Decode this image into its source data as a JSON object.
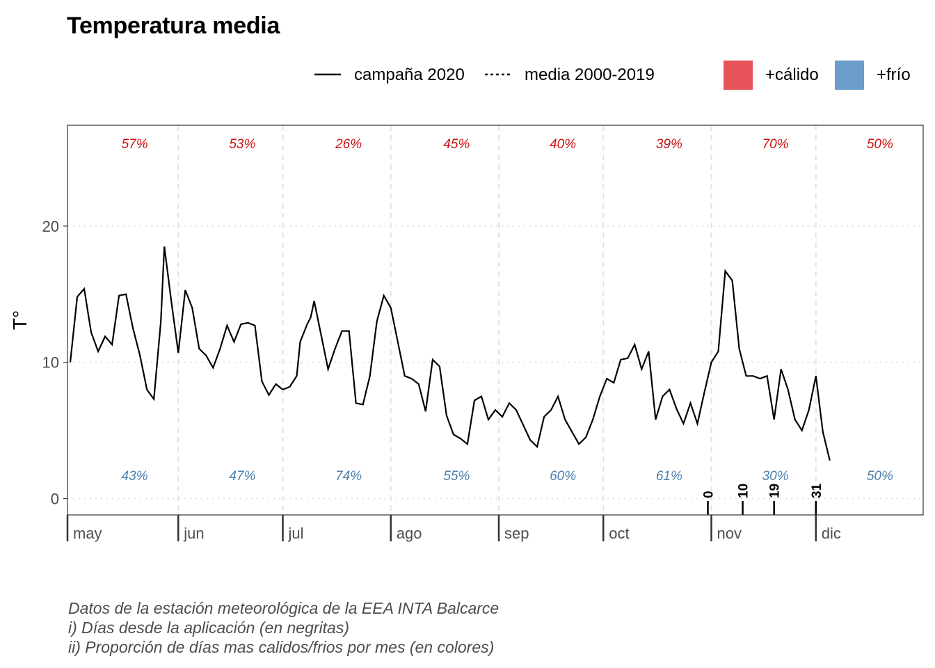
{
  "title": "Temperatura media",
  "legend": {
    "line_2020": "campaña 2020",
    "line_mean": "media 2000-2019",
    "warm": "+cálido",
    "cold": "+frío"
  },
  "colors": {
    "warm": "#e8545a",
    "warm_fill": "#ef8e8f",
    "cold": "#6b9ecb",
    "cold_fill": "#9bbcdd",
    "warm_text": "#cc1111",
    "cold_text": "#4a80b0"
  },
  "caption": [
    "Datos de la estación meteorológica de la EEA INTA Balcarce",
    "i) Días desde la aplicación (en negritas)",
    "ii) Proporción de días mas calidos/frios por mes (en colores)"
  ],
  "chart_data": {
    "type": "area",
    "ylabel": "T°",
    "xlabel": "",
    "ylim": [
      -1.2,
      27.4
    ],
    "yticks": [
      0,
      10,
      20
    ],
    "grid": true,
    "legend_position": "top-right",
    "months": [
      "may",
      "jun",
      "jul",
      "ago",
      "sep",
      "oct",
      "nov",
      "dic"
    ],
    "warm_pct": [
      "57%",
      "53%",
      "26%",
      "45%",
      "40%",
      "39%",
      "70%",
      "50%"
    ],
    "cold_pct": [
      "43%",
      "47%",
      "74%",
      "55%",
      "60%",
      "61%",
      "30%",
      "50%"
    ],
    "application_days": [
      "0",
      "10",
      "19",
      "31"
    ],
    "application_dates": [
      "2020-10-31",
      "2020-11-10",
      "2020-11-19",
      "2020-12-01"
    ],
    "x_start": "2020-05-01",
    "x_end": "2020-12-31",
    "series_2020": [
      [
        "2020-05-01",
        10.0
      ],
      [
        "2020-05-03",
        14.8
      ],
      [
        "2020-05-05",
        15.4
      ],
      [
        "2020-05-07",
        12.2
      ],
      [
        "2020-05-09",
        10.8
      ],
      [
        "2020-05-11",
        11.9
      ],
      [
        "2020-05-13",
        11.3
      ],
      [
        "2020-05-15",
        14.9
      ],
      [
        "2020-05-17",
        15.0
      ],
      [
        "2020-05-19",
        12.5
      ],
      [
        "2020-05-21",
        10.5
      ],
      [
        "2020-05-23",
        8.0
      ],
      [
        "2020-05-25",
        7.3
      ],
      [
        "2020-05-27",
        13.0
      ],
      [
        "2020-05-28",
        18.5
      ],
      [
        "2020-05-30",
        14.5
      ],
      [
        "2020-06-01",
        10.7
      ],
      [
        "2020-06-03",
        15.3
      ],
      [
        "2020-06-05",
        14.0
      ],
      [
        "2020-06-07",
        11.0
      ],
      [
        "2020-06-09",
        10.5
      ],
      [
        "2020-06-11",
        9.6
      ],
      [
        "2020-06-13",
        11.0
      ],
      [
        "2020-06-15",
        12.7
      ],
      [
        "2020-06-17",
        11.5
      ],
      [
        "2020-06-19",
        12.8
      ],
      [
        "2020-06-21",
        12.9
      ],
      [
        "2020-06-23",
        12.7
      ],
      [
        "2020-06-25",
        8.6
      ],
      [
        "2020-06-27",
        7.6
      ],
      [
        "2020-06-29",
        8.4
      ],
      [
        "2020-07-01",
        8.0
      ],
      [
        "2020-07-03",
        8.2
      ],
      [
        "2020-07-05",
        9.0
      ],
      [
        "2020-07-06",
        11.5
      ],
      [
        "2020-07-08",
        12.8
      ],
      [
        "2020-07-09",
        13.3
      ],
      [
        "2020-07-10",
        14.5
      ],
      [
        "2020-07-12",
        12.0
      ],
      [
        "2020-07-14",
        9.5
      ],
      [
        "2020-07-16",
        11.0
      ],
      [
        "2020-07-18",
        12.3
      ],
      [
        "2020-07-20",
        12.3
      ],
      [
        "2020-07-22",
        7.0
      ],
      [
        "2020-07-24",
        6.9
      ],
      [
        "2020-07-26",
        9.0
      ],
      [
        "2020-07-28",
        13.0
      ],
      [
        "2020-07-30",
        14.9
      ],
      [
        "2020-08-01",
        14.0
      ],
      [
        "2020-08-03",
        11.5
      ],
      [
        "2020-08-05",
        9.0
      ],
      [
        "2020-08-07",
        8.8
      ],
      [
        "2020-08-09",
        8.4
      ],
      [
        "2020-08-11",
        6.4
      ],
      [
        "2020-08-13",
        10.2
      ],
      [
        "2020-08-15",
        9.7
      ],
      [
        "2020-08-17",
        6.1
      ],
      [
        "2020-08-19",
        4.7
      ],
      [
        "2020-08-21",
        4.4
      ],
      [
        "2020-08-23",
        4.0
      ],
      [
        "2020-08-25",
        7.2
      ],
      [
        "2020-08-27",
        7.5
      ],
      [
        "2020-08-29",
        5.8
      ],
      [
        "2020-08-31",
        6.5
      ],
      [
        "2020-09-02",
        6.0
      ],
      [
        "2020-09-04",
        7.0
      ],
      [
        "2020-09-06",
        6.5
      ],
      [
        "2020-09-08",
        5.4
      ],
      [
        "2020-09-10",
        4.3
      ],
      [
        "2020-09-12",
        3.8
      ],
      [
        "2020-09-14",
        6.0
      ],
      [
        "2020-09-16",
        6.5
      ],
      [
        "2020-09-18",
        7.5
      ],
      [
        "2020-09-20",
        5.8
      ],
      [
        "2020-09-22",
        4.9
      ],
      [
        "2020-09-24",
        4.0
      ],
      [
        "2020-09-26",
        4.5
      ],
      [
        "2020-09-28",
        5.8
      ],
      [
        "2020-09-30",
        7.5
      ],
      [
        "2020-10-02",
        8.8
      ],
      [
        "2020-10-04",
        8.5
      ],
      [
        "2020-10-06",
        10.2
      ],
      [
        "2020-10-08",
        10.3
      ],
      [
        "2020-10-10",
        11.3
      ],
      [
        "2020-10-12",
        9.5
      ],
      [
        "2020-10-14",
        10.8
      ],
      [
        "2020-10-16",
        5.8
      ],
      [
        "2020-10-18",
        7.5
      ],
      [
        "2020-10-20",
        8.0
      ],
      [
        "2020-10-22",
        6.6
      ],
      [
        "2020-10-24",
        5.5
      ],
      [
        "2020-10-26",
        7.0
      ],
      [
        "2020-10-28",
        5.5
      ],
      [
        "2020-10-30",
        7.8
      ],
      [
        "2020-11-01",
        10.0
      ],
      [
        "2020-11-03",
        10.8
      ],
      [
        "2020-11-05",
        16.7
      ],
      [
        "2020-11-07",
        16.0
      ],
      [
        "2020-11-09",
        11.0
      ],
      [
        "2020-11-11",
        9.0
      ],
      [
        "2020-11-13",
        9.0
      ],
      [
        "2020-11-15",
        8.8
      ],
      [
        "2020-11-17",
        9.0
      ],
      [
        "2020-11-19",
        5.8
      ],
      [
        "2020-11-21",
        9.5
      ],
      [
        "2020-11-23",
        8.0
      ],
      [
        "2020-11-25",
        5.8
      ],
      [
        "2020-11-27",
        5.0
      ],
      [
        "2020-11-29",
        6.5
      ],
      [
        "2020-12-01",
        9.0
      ],
      [
        "2020-12-03",
        4.9
      ],
      [
        "2020-12-05",
        2.8
      ]
    ],
    "series_mean_note": "",
    "series_mean": []
  }
}
